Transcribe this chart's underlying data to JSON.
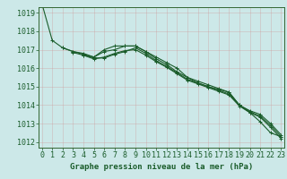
{
  "title": "Graphe pression niveau de la mer (hPa)",
  "bg_color": "#cce8e8",
  "grid_color": "#aacccc",
  "line_color": "#1a5c2a",
  "border_color": "#336633",
  "x_min": 0,
  "x_max": 23,
  "y_min": 1012,
  "y_max": 1019,
  "series": [
    [
      1019.5,
      1017.5,
      1017.1,
      1016.9,
      1016.8,
      1016.6,
      1016.9,
      1017.0,
      1017.2,
      1017.2,
      1016.9,
      1016.5,
      1016.2,
      1015.8,
      1015.5,
      1015.2,
      1015.0,
      1014.85,
      1014.7,
      1014.0,
      1013.6,
      1013.1,
      1012.5,
      1012.3
    ],
    [
      null,
      null,
      1017.1,
      1016.9,
      1016.75,
      1016.6,
      1017.0,
      1017.2,
      1017.2,
      1017.2,
      1016.9,
      1016.6,
      1016.3,
      1016.0,
      1015.5,
      1015.3,
      1015.1,
      1014.9,
      1014.7,
      1014.0,
      1013.7,
      1013.5,
      1013.0,
      1012.4
    ],
    [
      null,
      null,
      null,
      1016.85,
      1016.7,
      1016.55,
      1016.55,
      1016.75,
      1016.9,
      1017.1,
      1016.8,
      1016.4,
      1016.1,
      1015.75,
      1015.4,
      1015.2,
      1015.0,
      1014.8,
      1014.6,
      1014.0,
      1013.65,
      1013.4,
      1012.9,
      1012.3
    ],
    [
      null,
      null,
      null,
      null,
      1016.7,
      1016.5,
      1016.6,
      1016.8,
      1016.95,
      1017.0,
      1016.7,
      1016.35,
      1016.05,
      1015.7,
      1015.35,
      1015.15,
      1014.95,
      1014.75,
      1014.55,
      1013.95,
      1013.6,
      1013.35,
      1012.8,
      1012.2
    ]
  ],
  "yticks": [
    1012,
    1013,
    1014,
    1015,
    1016,
    1017,
    1018,
    1019
  ],
  "xticks": [
    0,
    1,
    2,
    3,
    4,
    5,
    6,
    7,
    8,
    9,
    10,
    11,
    12,
    13,
    14,
    15,
    16,
    17,
    18,
    19,
    20,
    21,
    22,
    23
  ],
  "marker": "+",
  "marker_size": 3,
  "line_width": 0.8,
  "font_size": 6,
  "title_font_size": 6.5
}
